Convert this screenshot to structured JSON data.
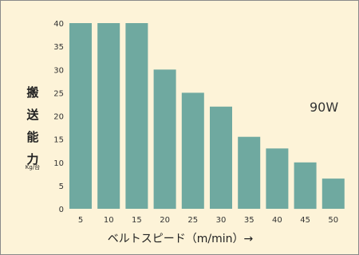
{
  "chart_data": {
    "type": "bar",
    "categories": [
      "5",
      "10",
      "15",
      "20",
      "25",
      "30",
      "35",
      "40",
      "45",
      "50"
    ],
    "values": [
      40,
      40,
      40,
      30,
      25,
      22,
      15.5,
      13,
      10,
      6.5
    ],
    "ylabel_chars": [
      "搬",
      "送",
      "能",
      "力"
    ],
    "yunit": "Kg/台",
    "xlabel": "ベルトスピード（m/min）→",
    "annotation": "90W",
    "yticks": [
      "0",
      "5",
      "10",
      "15",
      "20",
      "25",
      "30",
      "35",
      "40"
    ],
    "ylim": [
      0,
      40
    ],
    "grid": false,
    "bar_color": "#6fa9a0",
    "background_color": "#fdf3d8"
  }
}
